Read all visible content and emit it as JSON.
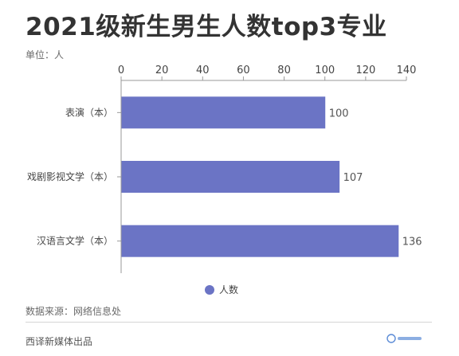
{
  "header": {
    "title": "2021级新生男生人数top3专业",
    "unit": "单位：人"
  },
  "chart_data": {
    "type": "bar",
    "orientation": "horizontal",
    "categories": [
      "表演（本）",
      "戏剧影视文学（本）",
      "汉语言文学（本）"
    ],
    "series": [
      {
        "name": "人数",
        "values": [
          100,
          107,
          136
        ]
      }
    ],
    "xlim": [
      0,
      140
    ],
    "x_ticks": [
      0,
      20,
      40,
      60,
      80,
      100,
      120,
      140
    ],
    "x_axis_position": "top",
    "grid": false,
    "legend_position": "bottom-center",
    "bar_color": "#6b74c5"
  },
  "footer": {
    "source": "数据来源：网络信息处",
    "credit": "西译新媒体出品"
  }
}
